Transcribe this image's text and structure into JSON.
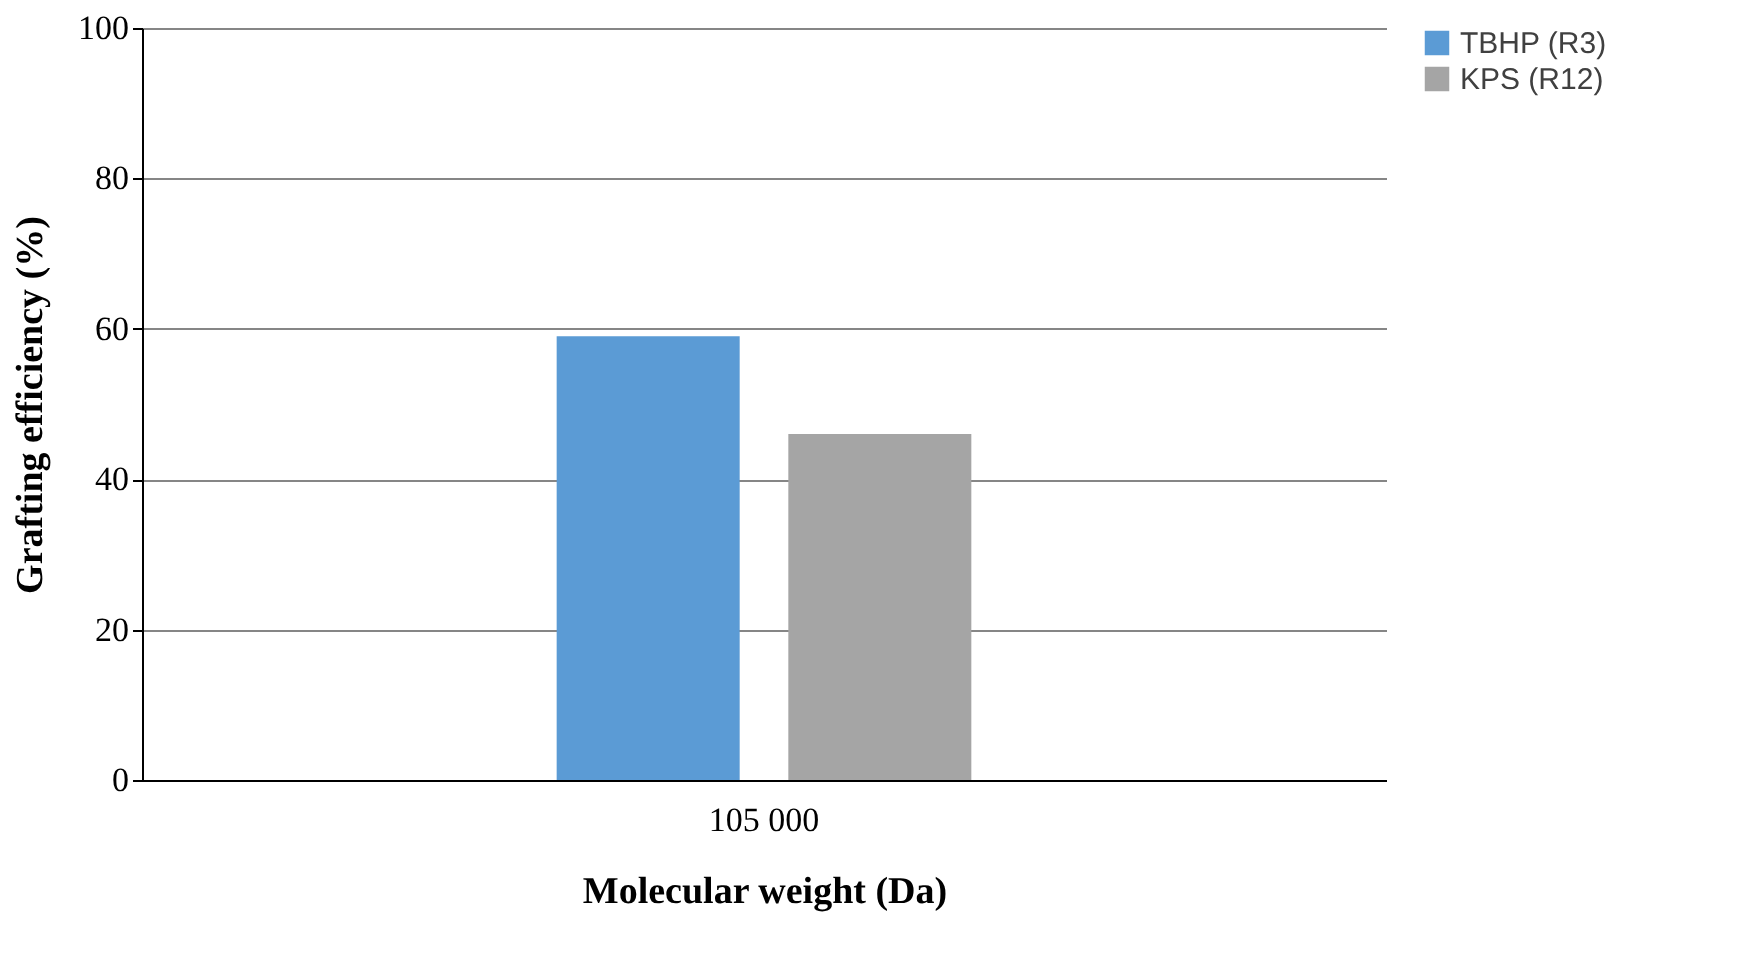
{
  "chart_data": {
    "type": "bar",
    "xlabel": "Molecular weight (Da)",
    "ylabel": "Grafting efficiency (%)",
    "categories": [
      "105 000"
    ],
    "series": [
      {
        "name": "TBHP (R3)",
        "color": "#5b9bd5",
        "values": [
          59
        ]
      },
      {
        "name": "KPS (R12)",
        "color": "#a5a5a5",
        "values": [
          46
        ]
      }
    ],
    "ylim": [
      0,
      100
    ],
    "yticks": [
      0,
      20,
      40,
      60,
      80,
      100
    ],
    "grid": "y",
    "legend": "right"
  }
}
